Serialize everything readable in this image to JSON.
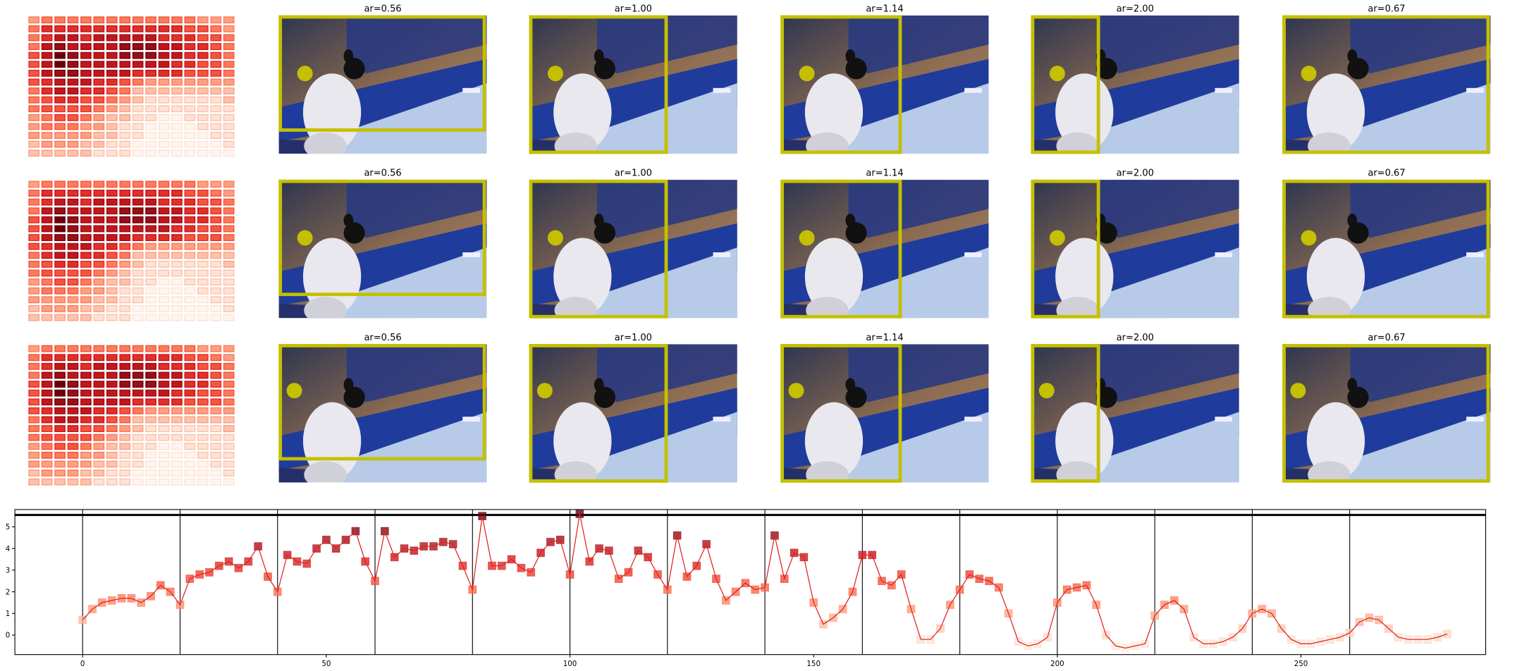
{
  "panel_titles": [
    "ar=0.56",
    "ar=1.00",
    "ar=1.14",
    "ar=2.00",
    "ar=0.67"
  ],
  "chart_data": [
    {
      "type": "heatmap",
      "cmap": "Reds",
      "values": [
        [
          0.3,
          0.4,
          0.4,
          0.4,
          0.4,
          0.4,
          0.4,
          0.4,
          0.4,
          0.4,
          0.4,
          0.4,
          0.4,
          0.3,
          0.3,
          0.3
        ],
        [
          0.4,
          0.6,
          0.6,
          0.6,
          0.6,
          0.6,
          0.6,
          0.6,
          0.6,
          0.6,
          0.6,
          0.6,
          0.5,
          0.5,
          0.4,
          0.3
        ],
        [
          0.4,
          0.6,
          0.7,
          0.7,
          0.6,
          0.7,
          0.7,
          0.7,
          0.7,
          0.7,
          0.6,
          0.6,
          0.6,
          0.5,
          0.5,
          0.4
        ],
        [
          0.4,
          0.7,
          0.8,
          0.7,
          0.7,
          0.7,
          0.7,
          0.8,
          0.8,
          0.8,
          0.7,
          0.7,
          0.6,
          0.6,
          0.5,
          0.4
        ],
        [
          0.5,
          0.7,
          0.9,
          0.8,
          0.7,
          0.7,
          0.7,
          0.8,
          0.8,
          0.8,
          0.7,
          0.7,
          0.6,
          0.6,
          0.5,
          0.4
        ],
        [
          0.5,
          0.7,
          0.9,
          0.8,
          0.7,
          0.7,
          0.7,
          0.7,
          0.7,
          0.7,
          0.7,
          0.6,
          0.6,
          0.5,
          0.5,
          0.4
        ],
        [
          0.5,
          0.7,
          0.8,
          0.8,
          0.7,
          0.7,
          0.7,
          0.7,
          0.6,
          0.6,
          0.6,
          0.6,
          0.5,
          0.5,
          0.5,
          0.4
        ],
        [
          0.5,
          0.6,
          0.7,
          0.7,
          0.7,
          0.6,
          0.6,
          0.5,
          0.4,
          0.3,
          0.3,
          0.3,
          0.3,
          0.3,
          0.3,
          0.3
        ],
        [
          0.4,
          0.6,
          0.7,
          0.7,
          0.6,
          0.6,
          0.5,
          0.4,
          0.2,
          0.2,
          0.2,
          0.2,
          0.2,
          0.2,
          0.2,
          0.2
        ],
        [
          0.4,
          0.5,
          0.6,
          0.6,
          0.5,
          0.5,
          0.4,
          0.3,
          0.2,
          0.1,
          0.1,
          0.1,
          0.1,
          0.1,
          0.1,
          0.2
        ],
        [
          0.4,
          0.5,
          0.5,
          0.5,
          0.5,
          0.4,
          0.3,
          0.2,
          0.1,
          0.1,
          0.1,
          0.1,
          0.1,
          0.1,
          0.1,
          0.1
        ],
        [
          0.3,
          0.4,
          0.5,
          0.5,
          0.4,
          0.3,
          0.2,
          0.2,
          0.1,
          0.1,
          0.0,
          0.0,
          0.1,
          0.1,
          0.1,
          0.1
        ],
        [
          0.3,
          0.4,
          0.4,
          0.4,
          0.3,
          0.3,
          0.2,
          0.1,
          0.1,
          0.0,
          0.0,
          0.0,
          0.0,
          0.1,
          0.1,
          0.1
        ],
        [
          0.3,
          0.3,
          0.3,
          0.3,
          0.3,
          0.2,
          0.2,
          0.1,
          0.1,
          0.0,
          0.0,
          0.0,
          0.0,
          0.0,
          0.1,
          0.1
        ],
        [
          0.2,
          0.3,
          0.3,
          0.3,
          0.2,
          0.2,
          0.1,
          0.1,
          0.0,
          0.0,
          0.0,
          0.0,
          0.0,
          0.0,
          0.0,
          0.1
        ],
        [
          0.2,
          0.2,
          0.2,
          0.2,
          0.2,
          0.1,
          0.1,
          0.1,
          0.0,
          0.0,
          0.0,
          0.0,
          0.0,
          0.0,
          0.0,
          0.0
        ]
      ]
    },
    {
      "type": "line",
      "color": "#e0201c",
      "marker_cmap": "Reds",
      "x": [
        0,
        2,
        4,
        6,
        8,
        10,
        12,
        14,
        16,
        18,
        20,
        22,
        24,
        26,
        28,
        30,
        32,
        34,
        36,
        38,
        40,
        42,
        44,
        46,
        48,
        50,
        52,
        54,
        56,
        58,
        60,
        62,
        64,
        66,
        68,
        70,
        72,
        74,
        76,
        78,
        80,
        82,
        84,
        86,
        88,
        90,
        92,
        94,
        96,
        98,
        100,
        102,
        104,
        106,
        108,
        110,
        112,
        114,
        116,
        118,
        120,
        122,
        124,
        126,
        128,
        130,
        132,
        134,
        136,
        138,
        140,
        142,
        144,
        146,
        148,
        150,
        152,
        154,
        156,
        158,
        160,
        162,
        164,
        166,
        168,
        170,
        172,
        174,
        176,
        178,
        180,
        182,
        184,
        186,
        188,
        190,
        192,
        194,
        196,
        198,
        200,
        202,
        204,
        206,
        208,
        210,
        212,
        214,
        216,
        218,
        220,
        222,
        224,
        226,
        228,
        230,
        232,
        234,
        236,
        238,
        240,
        242,
        244,
        246,
        248,
        250,
        252,
        254,
        256,
        258,
        260,
        262,
        264,
        266,
        268,
        270,
        272,
        274,
        276,
        278,
        280
      ],
      "values": [
        0.7,
        1.2,
        1.5,
        1.6,
        1.7,
        1.7,
        1.5,
        1.8,
        2.3,
        2.0,
        1.4,
        2.6,
        2.8,
        2.9,
        3.2,
        3.4,
        3.1,
        3.4,
        4.1,
        2.7,
        2.0,
        3.7,
        3.4,
        3.3,
        4.0,
        4.4,
        4.0,
        4.4,
        4.8,
        3.4,
        2.5,
        4.8,
        3.6,
        4.0,
        3.9,
        4.1,
        4.1,
        4.3,
        4.2,
        3.2,
        2.1,
        5.5,
        3.2,
        3.2,
        3.5,
        3.1,
        2.9,
        3.8,
        4.3,
        4.4,
        2.8,
        5.6,
        3.4,
        4.0,
        3.9,
        2.6,
        2.9,
        3.9,
        3.6,
        2.8,
        2.1,
        4.6,
        2.7,
        3.2,
        4.2,
        2.6,
        1.6,
        2.0,
        2.4,
        2.1,
        2.2,
        4.6,
        2.6,
        3.8,
        3.6,
        1.5,
        0.5,
        0.8,
        1.2,
        2.0,
        3.7,
        3.7,
        2.5,
        2.3,
        2.8,
        1.2,
        -0.2,
        -0.2,
        0.3,
        1.4,
        2.1,
        2.8,
        2.6,
        2.5,
        2.2,
        1.0,
        -0.3,
        -0.5,
        -0.4,
        -0.1,
        1.5,
        2.1,
        2.2,
        2.3,
        1.4,
        0.0,
        -0.5,
        -0.6,
        -0.5,
        -0.4,
        0.9,
        1.4,
        1.6,
        1.2,
        -0.1,
        -0.4,
        -0.4,
        -0.3,
        -0.1,
        0.3,
        1.0,
        1.2,
        1.0,
        0.3,
        -0.2,
        -0.4,
        -0.4,
        -0.3,
        -0.2,
        -0.1,
        0.1,
        0.6,
        0.8,
        0.7,
        0.3,
        -0.1,
        -0.2,
        -0.2,
        -0.2,
        -0.1,
        0.05
      ],
      "xlim": [
        -13.9,
        287.9
      ],
      "ylim": [
        -0.9,
        5.8
      ],
      "xticks": [
        0,
        50,
        100,
        150,
        200,
        250
      ],
      "yticks": [
        0,
        1,
        2,
        3,
        4,
        5
      ],
      "vlines": [
        0,
        20,
        40,
        60,
        80,
        100,
        120,
        140,
        160,
        180,
        200,
        220,
        240,
        260
      ],
      "hline": 5.55
    }
  ]
}
